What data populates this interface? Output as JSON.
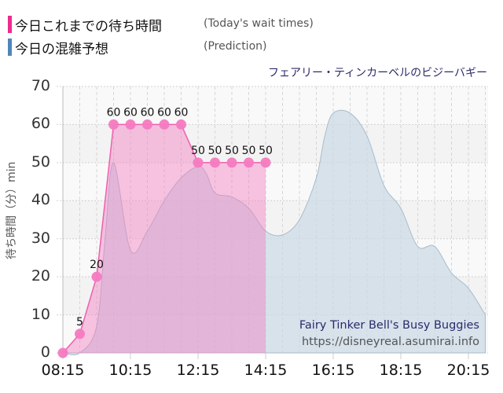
{
  "legend": {
    "actual": {
      "label": "今日これまでの待ち時間",
      "english": "(Today's wait times)",
      "color": "#ee2b8f"
    },
    "prediction": {
      "label": "今日の混雑予想",
      "english": "(Prediction)",
      "color": "#4f86b8"
    }
  },
  "chart_title": "フェアリー・ティンカーベルのビジーバギー",
  "watermark": {
    "name": "Fairy Tinker Bell's Busy Buggies",
    "url": "https://disneyreal.asumirai.info"
  },
  "chart_data": {
    "type": "area",
    "title": "フェアリー・ティンカーベルのビジーバギー",
    "xlabel": "",
    "ylabel": "待ち時間（分）min",
    "ylim": [
      0,
      70
    ],
    "yticks": [
      0,
      10,
      20,
      30,
      40,
      50,
      60,
      70
    ],
    "xticks": [
      "08:15",
      "10:15",
      "12:15",
      "14:15",
      "16:15",
      "18:15",
      "20:15"
    ],
    "grid": true,
    "series": [
      {
        "name": "今日これまでの待ち時間 (Today's wait times)",
        "type": "line-area-markers",
        "x": [
          "08:15",
          "08:45",
          "09:15",
          "09:45",
          "10:15",
          "10:45",
          "11:15",
          "11:45",
          "12:15",
          "12:45",
          "13:15",
          "13:45",
          "14:15"
        ],
        "values": [
          0,
          5,
          20,
          60,
          60,
          60,
          60,
          60,
          50,
          50,
          50,
          50,
          50
        ],
        "labels": [
          "",
          "5",
          "20",
          "60",
          "60",
          "60",
          "60",
          "60",
          "50",
          "50",
          "50",
          "50",
          "50"
        ]
      },
      {
        "name": "今日の混雑予想 (Prediction)",
        "type": "area",
        "x": [
          "08:15",
          "08:45",
          "09:15",
          "09:30",
          "09:45",
          "10:15",
          "10:45",
          "11:15",
          "11:45",
          "12:15",
          "12:30",
          "12:45",
          "13:15",
          "13:45",
          "14:15",
          "14:45",
          "15:15",
          "15:45",
          "16:00",
          "16:15",
          "16:45",
          "17:15",
          "17:45",
          "18:15",
          "18:45",
          "19:15",
          "19:45",
          "20:15",
          "20:45"
        ],
        "values": [
          0,
          0,
          7,
          30,
          50,
          27,
          32,
          40,
          46,
          49,
          47,
          42,
          41,
          38,
          32,
          31,
          35,
          46,
          57,
          63,
          63,
          57,
          44,
          38,
          28,
          28,
          21,
          17,
          10
        ]
      }
    ]
  }
}
